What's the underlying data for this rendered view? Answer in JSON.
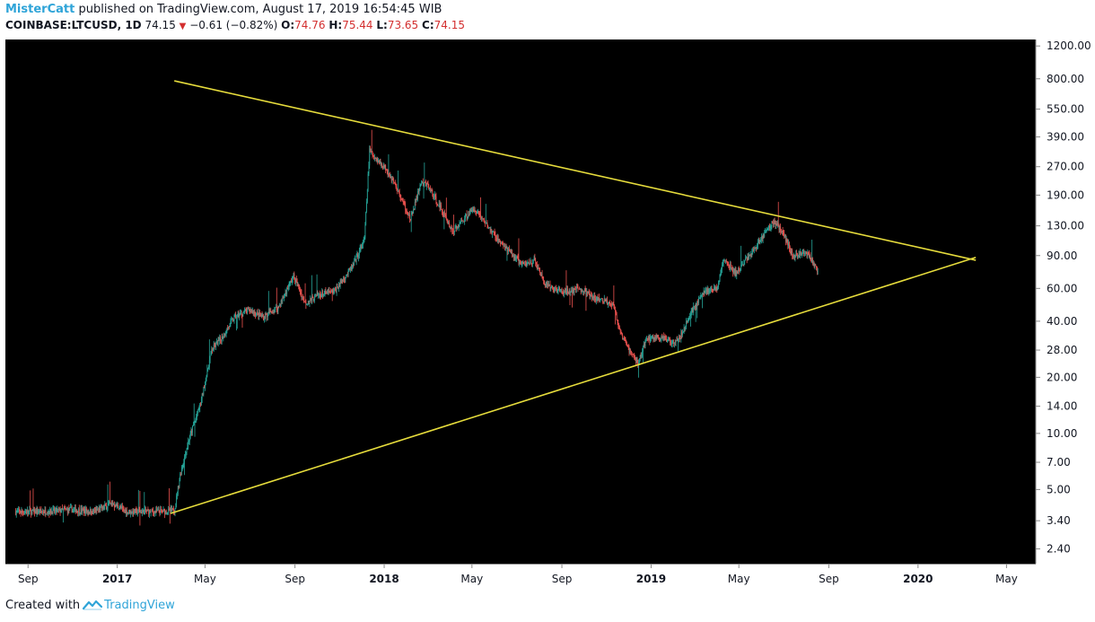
{
  "header": {
    "user": "MisterCatt",
    "published_text": "published on TradingView.com, August 17, 2019 16:54:45 WIB",
    "symbol": "COINBASE:LTCUSD, 1D",
    "last": "74.15",
    "change": "−0.61 (−0.82%)",
    "open_label": "O:",
    "open": "74.76",
    "high_label": "H:",
    "high": "75.44",
    "low_label": "L:",
    "low": "73.65",
    "close_label": "C:",
    "close": "74.15"
  },
  "footer": {
    "created_with": "Created with",
    "brand": "TradingView"
  },
  "colors": {
    "up": "#26a69a",
    "down": "#ef5350",
    "trend": "#e6dc3c",
    "bg": "#000000",
    "accent": "#2fa4d8"
  },
  "chart_data": {
    "type": "candlestick",
    "title": "COINBASE:LTCUSD, 1D",
    "y_scale": "log",
    "ylim": [
      2.0,
      1300
    ],
    "y_ticks": [
      "1200.00",
      "800.00",
      "550.00",
      "390.00",
      "270.00",
      "190.00",
      "130.00",
      "90.00",
      "60.00",
      "40.00",
      "28.00",
      "20.00",
      "14.00",
      "10.00",
      "7.00",
      "5.00",
      "3.40",
      "2.40"
    ],
    "x_range": [
      "2016-08-01",
      "2020-06-10"
    ],
    "x_ticks": [
      {
        "date": "2016-09-01",
        "label": "Sep",
        "bold": false
      },
      {
        "date": "2017-01-01",
        "label": "2017",
        "bold": true
      },
      {
        "date": "2017-05-01",
        "label": "May",
        "bold": false
      },
      {
        "date": "2017-09-01",
        "label": "Sep",
        "bold": false
      },
      {
        "date": "2018-01-01",
        "label": "2018",
        "bold": true
      },
      {
        "date": "2018-05-01",
        "label": "May",
        "bold": false
      },
      {
        "date": "2018-09-01",
        "label": "Sep",
        "bold": false
      },
      {
        "date": "2019-01-01",
        "label": "2019",
        "bold": true
      },
      {
        "date": "2019-05-01",
        "label": "May",
        "bold": false
      },
      {
        "date": "2019-09-01",
        "label": "Sep",
        "bold": false
      },
      {
        "date": "2020-01-01",
        "label": "2020",
        "bold": true
      },
      {
        "date": "2020-05-01",
        "label": "May",
        "bold": false
      }
    ],
    "price_path": [
      [
        "2016-08-15",
        3.8
      ],
      [
        "2016-09-20",
        3.8
      ],
      [
        "2016-11-01",
        3.9
      ],
      [
        "2016-12-01",
        3.8
      ],
      [
        "2016-12-25",
        4.2
      ],
      [
        "2017-01-15",
        3.8
      ],
      [
        "2017-02-20",
        3.8
      ],
      [
        "2017-03-20",
        3.85
      ],
      [
        "2017-03-28",
        6.0
      ],
      [
        "2017-04-08",
        9.0
      ],
      [
        "2017-04-25",
        14.5
      ],
      [
        "2017-05-10",
        28.0
      ],
      [
        "2017-05-25",
        33.0
      ],
      [
        "2017-06-10",
        42.0
      ],
      [
        "2017-07-01",
        46.0
      ],
      [
        "2017-07-20",
        42.0
      ],
      [
        "2017-08-10",
        48.0
      ],
      [
        "2017-08-30",
        70.0
      ],
      [
        "2017-09-15",
        50.0
      ],
      [
        "2017-10-01",
        55.0
      ],
      [
        "2017-10-25",
        58.0
      ],
      [
        "2017-11-20",
        80.0
      ],
      [
        "2017-12-05",
        110.0
      ],
      [
        "2017-12-12",
        330.0
      ],
      [
        "2017-12-20",
        300.0
      ],
      [
        "2018-01-05",
        260.0
      ],
      [
        "2018-01-20",
        200.0
      ],
      [
        "2018-02-06",
        140.0
      ],
      [
        "2018-02-20",
        220.0
      ],
      [
        "2018-03-01",
        215.0
      ],
      [
        "2018-03-20",
        160.0
      ],
      [
        "2018-04-05",
        120.0
      ],
      [
        "2018-04-25",
        150.0
      ],
      [
        "2018-05-05",
        160.0
      ],
      [
        "2018-05-30",
        118.0
      ],
      [
        "2018-06-20",
        95.0
      ],
      [
        "2018-07-10",
        80.0
      ],
      [
        "2018-07-25",
        85.0
      ],
      [
        "2018-08-10",
        62.0
      ],
      [
        "2018-09-05",
        57.0
      ],
      [
        "2018-09-25",
        60.0
      ],
      [
        "2018-10-15",
        53.0
      ],
      [
        "2018-11-10",
        50.0
      ],
      [
        "2018-11-20",
        34.0
      ],
      [
        "2018-12-07",
        26.0
      ],
      [
        "2018-12-15",
        24.0
      ],
      [
        "2018-12-25",
        32.0
      ],
      [
        "2019-01-10",
        33.0
      ],
      [
        "2019-01-30",
        31.0
      ],
      [
        "2019-02-10",
        33.0
      ],
      [
        "2019-02-25",
        45.0
      ],
      [
        "2019-03-15",
        58.0
      ],
      [
        "2019-04-01",
        60.0
      ],
      [
        "2019-04-10",
        85.0
      ],
      [
        "2019-04-28",
        72.0
      ],
      [
        "2019-05-10",
        85.0
      ],
      [
        "2019-05-20",
        95.0
      ],
      [
        "2019-06-01",
        112.0
      ],
      [
        "2019-06-15",
        135.0
      ],
      [
        "2019-06-23",
        132.0
      ],
      [
        "2019-07-01",
        118.0
      ],
      [
        "2019-07-15",
        88.0
      ],
      [
        "2019-07-28",
        95.0
      ],
      [
        "2019-08-05",
        90.0
      ],
      [
        "2019-08-17",
        74.15
      ]
    ],
    "trend_lines": [
      {
        "name": "upper-resistance",
        "points": [
          [
            "2017-03-20",
            780
          ],
          [
            "2020-03-20",
            85
          ]
        ]
      },
      {
        "name": "lower-support",
        "points": [
          [
            "2017-03-15",
            3.72
          ],
          [
            "2020-03-20",
            88
          ]
        ]
      }
    ]
  }
}
